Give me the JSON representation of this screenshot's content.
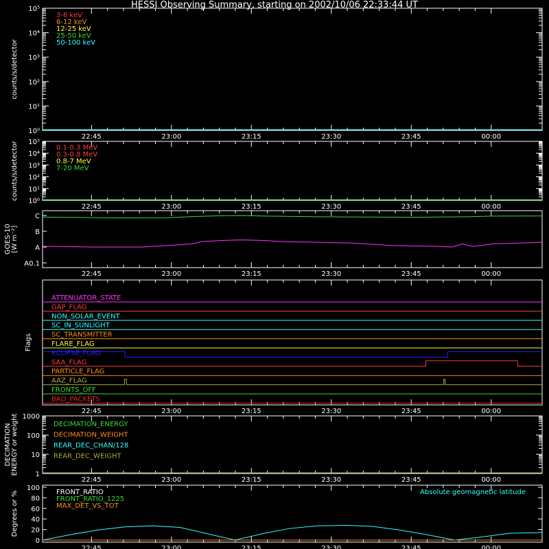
{
  "title": "HESSI Observing Summary, starting on 2002/10/06 22:33:44 UT",
  "time_ticks": [
    "22:45",
    "23:00",
    "23:15",
    "23:30",
    "23:45",
    "00:00"
  ],
  "colors": {
    "white": "#ffffff",
    "red": "#ff3b3b",
    "orange": "#ff8c1a",
    "yellow": "#ffff33",
    "green": "#33dd33",
    "cyan": "#33ffff",
    "magenta": "#ff33ff",
    "blue": "#2222ff",
    "olive": "#aaaa33",
    "darkred": "#ee2222"
  },
  "chart_data": [
    {
      "type": "line",
      "id": "low-energy",
      "title": "HESSI Observing Summary, starting on 2002/10/06 22:33:44 UT",
      "ylabel": "counts/s/detector",
      "yscale": "log",
      "ylim": [
        1,
        100000
      ],
      "ytick_labels": [
        "10⁰",
        "10¹",
        "10²",
        "10³",
        "10⁴",
        "10⁵"
      ],
      "legend": [
        {
          "name": "3-6 keV",
          "color": "red"
        },
        {
          "name": "6-12 keV",
          "color": "orange"
        },
        {
          "name": "12-25 keV",
          "color": "yellow"
        },
        {
          "name": "25-50 keV",
          "color": "green"
        },
        {
          "name": "50-100 keV",
          "color": "cyan"
        }
      ],
      "x": [
        0,
        1
      ],
      "series": [
        {
          "name": "50-100 keV",
          "color": "cyan",
          "values": [
            1,
            1
          ]
        }
      ]
    },
    {
      "type": "line",
      "id": "high-energy",
      "ylabel": "counts/s/detector",
      "yscale": "log",
      "ylim": [
        1,
        100000
      ],
      "ytick_labels": [
        "10⁰",
        "10¹",
        "10²",
        "10³",
        "10⁴",
        "10⁵"
      ],
      "legend": [
        {
          "name": "0.1-0.3 MeV",
          "color": "red"
        },
        {
          "name": "0.3-0.8 MeV",
          "color": "red"
        },
        {
          "name": "0.8-7 MeV",
          "color": "yellow"
        },
        {
          "name": "7-20 MeV",
          "color": "green"
        }
      ],
      "x": [
        0,
        1
      ],
      "series": [
        {
          "name": "7-20 MeV",
          "color": "green",
          "values": [
            1,
            1
          ]
        }
      ]
    },
    {
      "type": "line",
      "id": "goes",
      "ylabel": "GOES-10 [W m⁻²]",
      "ytick_labels": [
        "A0.1",
        "A",
        "B",
        "C"
      ],
      "ylim": [
        0,
        3
      ],
      "series": [
        {
          "name": "GOES long",
          "color": "green",
          "x": [
            0,
            0.05,
            0.15,
            0.25,
            0.3,
            0.35,
            0.4,
            0.45,
            0.55,
            0.65,
            0.75,
            0.85,
            0.9,
            1.0
          ],
          "values": [
            2.9,
            2.88,
            2.85,
            2.86,
            2.93,
            2.98,
            3.0,
            2.96,
            2.92,
            2.9,
            2.89,
            2.92,
            2.96,
            2.97
          ]
        },
        {
          "name": "GOES short",
          "color": "magenta",
          "x": [
            0,
            0.1,
            0.2,
            0.3,
            0.32,
            0.36,
            0.4,
            0.44,
            0.48,
            0.55,
            0.62,
            0.7,
            0.78,
            0.82,
            0.84,
            0.86,
            0.88,
            0.9,
            0.95,
            1.0
          ],
          "values": [
            1.05,
            1.0,
            1.0,
            1.2,
            1.35,
            1.42,
            1.45,
            1.42,
            1.35,
            1.3,
            1.25,
            1.1,
            1.05,
            1.0,
            1.2,
            1.05,
            1.1,
            1.2,
            1.25,
            1.3
          ]
        }
      ]
    },
    {
      "type": "line",
      "id": "flags",
      "ylabel": "Flags",
      "legend": [
        {
          "name": "ATTENUATOR_STATE",
          "color": "magenta"
        },
        {
          "name": "GAP_FLAG",
          "color": "red"
        },
        {
          "name": "NON_SOLAR_EVENT",
          "color": "cyan"
        },
        {
          "name": "SC_IN_SUNLIGHT",
          "color": "cyan"
        },
        {
          "name": "SC_TRANSMITTER",
          "color": "orange"
        },
        {
          "name": "FLARE_FLAG",
          "color": "yellow"
        },
        {
          "name": "ECLIPSE_FLAG",
          "color": "blue"
        },
        {
          "name": "SAA_FLAG",
          "color": "red"
        },
        {
          "name": "PARTICLE_FLAG",
          "color": "orange"
        },
        {
          "name": "AAZ_FLAG",
          "color": "olive"
        },
        {
          "name": "FRONTS_OFF",
          "color": "green"
        },
        {
          "name": "BAD_PACKETS",
          "color": "darkred"
        }
      ],
      "series": [
        {
          "name": "ATTENUATOR_STATE",
          "color": "magenta",
          "x": [
            0,
            1
          ],
          "values": [
            0,
            0
          ]
        },
        {
          "name": "GAP_FLAG",
          "color": "red",
          "x": [
            0,
            1
          ],
          "values": [
            0,
            0
          ]
        },
        {
          "name": "NON_SOLAR_EVENT",
          "color": "cyan",
          "x": [
            0,
            1
          ],
          "values": [
            0,
            0
          ]
        },
        {
          "name": "SC_IN_SUNLIGHT",
          "color": "cyan",
          "x": [
            0,
            1
          ],
          "values": [
            0,
            0
          ]
        },
        {
          "name": "SC_TRANSMITTER",
          "color": "orange",
          "x": [
            0,
            1
          ],
          "values": [
            0,
            0
          ]
        },
        {
          "name": "FLARE_FLAG",
          "color": "yellow",
          "x": [
            0,
            1
          ],
          "values": [
            0,
            0
          ]
        },
        {
          "name": "ECLIPSE_FLAG",
          "color": "blue",
          "x": [
            0,
            0.165,
            0.165,
            0.811,
            0.811,
            1
          ],
          "values": [
            1,
            1,
            0,
            0,
            1,
            1
          ]
        },
        {
          "name": "SAA_FLAG",
          "color": "red",
          "x": [
            0,
            0.767,
            0.767,
            0.951,
            0.951,
            1
          ],
          "values": [
            0,
            0,
            1,
            1,
            0,
            0
          ]
        },
        {
          "name": "PARTICLE_FLAG",
          "color": "orange",
          "x": [
            0,
            1
          ],
          "values": [
            0,
            0
          ]
        },
        {
          "name": "AAZ_FLAG",
          "color": "olive",
          "x": [
            0,
            0.164,
            0.164,
            0.168,
            0.168,
            0.803,
            0.803,
            0.806,
            0.806,
            1
          ],
          "values": [
            0,
            0,
            1,
            1,
            0,
            0,
            1,
            1,
            0,
            0
          ]
        },
        {
          "name": "FRONTS_OFF",
          "color": "green",
          "x": [
            0,
            1
          ],
          "values": [
            0,
            0
          ]
        },
        {
          "name": "BAD_PACKETS",
          "color": "darkred",
          "x": [
            0,
            1
          ],
          "values": [
            0,
            0
          ]
        }
      ]
    },
    {
      "type": "line",
      "id": "decimation",
      "ylabel": "DECIMATION ENERGY or weight",
      "yscale": "log",
      "ylim": [
        1,
        1000
      ],
      "ytick_labels": [
        "1",
        "10",
        "100",
        "1000"
      ],
      "legend": [
        {
          "name": "DECIMATION_ENERGY",
          "color": "green"
        },
        {
          "name": "DECIMATION_WEIGHT",
          "color": "orange"
        },
        {
          "name": "REAR_DEC_CHAN/128",
          "color": "cyan"
        },
        {
          "name": "REAR_DEC_WEIGHT",
          "color": "olive"
        }
      ],
      "series": [
        {
          "name": "REAR_DEC_WEIGHT",
          "color": "olive",
          "x": [
            0,
            1
          ],
          "values": [
            1,
            1
          ]
        }
      ]
    },
    {
      "type": "line",
      "id": "ratios",
      "ylabel": "Degrees or %",
      "ylim": [
        0,
        100
      ],
      "ytick_labels": [
        "0",
        "20",
        "40",
        "60",
        "80",
        "100"
      ],
      "legend": [
        {
          "name": "FRONT_RATIO",
          "color": "white"
        },
        {
          "name": "FRONT_RATIO_1225",
          "color": "green"
        },
        {
          "name": "MAX_DET_VS_TOT",
          "color": "orange"
        }
      ],
      "right_label": {
        "text": "Absolute geomagnetic latitude",
        "color": "cyan"
      },
      "series": [
        {
          "name": "Absolute geomagnetic latitude",
          "color": "cyan",
          "x": [
            0,
            0.055,
            0.11,
            0.165,
            0.22,
            0.275,
            0.33,
            0.385,
            0.44,
            0.495,
            0.55,
            0.605,
            0.66,
            0.715,
            0.77,
            0.825,
            0.88,
            0.935,
            0.99,
            1.0
          ],
          "values": [
            0,
            10,
            19,
            25,
            27,
            24,
            12,
            0,
            12,
            22,
            27,
            28,
            26,
            19,
            10,
            0,
            6,
            13,
            14,
            15
          ]
        },
        {
          "name": "MAX_DET_VS_TOT",
          "color": "orange",
          "x": [
            0,
            1
          ],
          "values": [
            0,
            0
          ]
        }
      ]
    }
  ]
}
